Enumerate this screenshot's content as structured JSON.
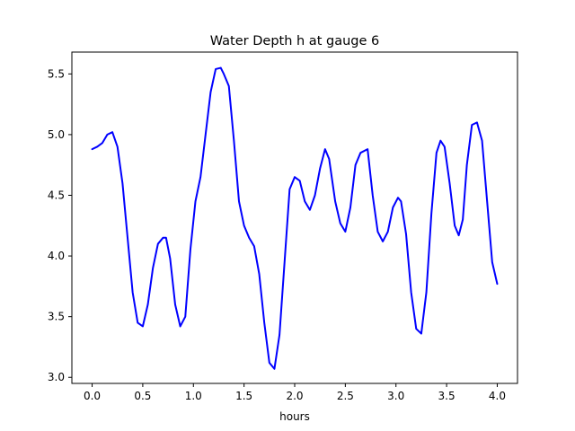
{
  "chart_data": {
    "type": "line",
    "title": "Water Depth h at gauge 6",
    "xlabel": "hours",
    "ylabel": "",
    "xlim": [
      -0.2,
      4.2
    ],
    "ylim": [
      2.95,
      5.68
    ],
    "grid": false,
    "legend": "none",
    "x_ticks": [
      0.0,
      0.5,
      1.0,
      1.5,
      2.0,
      2.5,
      3.0,
      3.5,
      4.0
    ],
    "x_tick_labels": [
      "0.0",
      "0.5",
      "1.0",
      "1.5",
      "2.0",
      "2.5",
      "3.0",
      "3.5",
      "4.0"
    ],
    "y_ticks": [
      3.0,
      3.5,
      4.0,
      4.5,
      5.0,
      5.5
    ],
    "y_tick_labels": [
      "3.0",
      "3.5",
      "4.0",
      "4.5",
      "5.0",
      "5.5"
    ],
    "series": [
      {
        "color": "#0000ff",
        "x": [
          0.0,
          0.05,
          0.1,
          0.15,
          0.2,
          0.25,
          0.3,
          0.35,
          0.4,
          0.45,
          0.5,
          0.55,
          0.6,
          0.65,
          0.7,
          0.73,
          0.77,
          0.82,
          0.87,
          0.92,
          0.97,
          1.02,
          1.07,
          1.12,
          1.17,
          1.22,
          1.27,
          1.3,
          1.35,
          1.4,
          1.45,
          1.5,
          1.55,
          1.6,
          1.65,
          1.7,
          1.75,
          1.8,
          1.85,
          1.9,
          1.95,
          2.0,
          2.05,
          2.1,
          2.15,
          2.2,
          2.25,
          2.3,
          2.34,
          2.4,
          2.45,
          2.5,
          2.55,
          2.6,
          2.65,
          2.72,
          2.77,
          2.82,
          2.87,
          2.92,
          2.97,
          3.02,
          3.05,
          3.1,
          3.15,
          3.2,
          3.25,
          3.3,
          3.35,
          3.4,
          3.44,
          3.48,
          3.53,
          3.58,
          3.62,
          3.66,
          3.7,
          3.75,
          3.8,
          3.85,
          3.9,
          3.95,
          4.0
        ],
        "y": [
          4.88,
          4.9,
          4.93,
          5.0,
          5.02,
          4.9,
          4.6,
          4.15,
          3.7,
          3.45,
          3.42,
          3.6,
          3.9,
          4.1,
          4.15,
          4.15,
          3.98,
          3.6,
          3.42,
          3.5,
          4.05,
          4.45,
          4.65,
          5.0,
          5.35,
          5.54,
          5.55,
          5.5,
          5.4,
          4.95,
          4.45,
          4.25,
          4.15,
          4.08,
          3.85,
          3.45,
          3.12,
          3.07,
          3.35,
          3.95,
          4.55,
          4.65,
          4.62,
          4.45,
          4.38,
          4.5,
          4.72,
          4.88,
          4.8,
          4.45,
          4.27,
          4.2,
          4.4,
          4.75,
          4.85,
          4.88,
          4.5,
          4.2,
          4.12,
          4.2,
          4.4,
          4.48,
          4.45,
          4.18,
          3.7,
          3.4,
          3.36,
          3.7,
          4.35,
          4.85,
          4.95,
          4.9,
          4.6,
          4.25,
          4.17,
          4.3,
          4.75,
          5.08,
          5.1,
          4.95,
          4.45,
          3.95,
          3.77
        ]
      }
    ]
  }
}
